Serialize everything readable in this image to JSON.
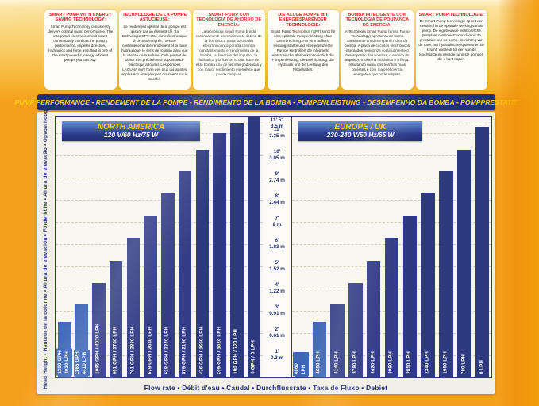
{
  "top_panels": [
    {
      "heading": "SMART PUMP WITH ENERGY SAVING TECHNOLOGY:",
      "body": "Smart Pump Technology consistently delivers optimal pump performance. The integrated electronic circuit board continuously monitors the pump's performance, impeller direction, hydraulics and force, resulting in one of the most powerful, energy efficient pumps you can buy."
    },
    {
      "heading": "TECHNOLOGIE DE LA POMPE ASTUCIEUSE:",
      "body": "Le rendement optimal de la pompe est assuré par un élément clé : la technologie SPT. Une carte électronique à circuits intégrés, mesure continuellement le rendement et la force hydraulique, le sens de rotation ainsi que la vitesse de la turbine. Cela permet de doser très précisément la puissance électrique à fournir. Les pompes LAGUNA sont l'une des plus puissantes et plus éco énergétiques qui soient sur le marché."
    },
    {
      "heading": "SMART PUMP CON TECNOLOGÍA DE AHORRO DE ENERGÍA:",
      "body": "La tecnología Smart Pump brinda continuamente un rendimiento óptimo de la bomba. La placa de circuito electrónico incorporada controla constantemente el rendimiento de la bomba, la dirección del impulsor, la hidráulica y la fuerza, lo cual hace de esta bomba una de las más poderosas y con mayor rendimiento energético que puede comprar."
    },
    {
      "heading": "DIE KLUGE PUMPE MIT ENERGIESPARENDER TECHNOLOGIE:",
      "body": "Smart Pump Technology (SPT) sorgt für eine optimale Pumpenleistung ohne Unterbrechung. Für eine äußerst leistungsstarke und energieeffiziente Pumpe kontrolliert die integrierte elektronische Platine kontinuierlich die Pumpenleistung, die Drehrichtung, die Hydraulik und die Leistung des Flügelrades."
    },
    {
      "heading": "BOMBA INTELIGENTE COM TECNOLOGIA DE POUPANÇA DE ENERGIA:",
      "body": "A Tecnologia Smart Pump (Smart Pump Technology) apresenta de forma consistente um desempenho ideal da bomba. A placa de circuitos electrónicos integrados monitoriza continuamente o desempenho das bombas, o sentido do impulsor, o sistema hidráulico e a força, resultando numa das bombas mais potentes e com maior eficiência energética que pode adquirir."
    },
    {
      "heading": "SMART PUMP-TECHNOLOGIE:",
      "body": "De Smart Pump-technologie speelt een sleutelrol in de optimale werking van de pomp. De ingebouwde elektronische printplaat controleert voortdurend de prestaties van de pomp, de richting van de rotor, het hydraulische systeem en de kracht, wat leidt tot een van de krachtigste en energiezuinigste pompen die u kunt kopen."
    }
  ],
  "banner": {
    "text": "PUMP PERFORMANCE • RENDEMENT DE LA POMPE • RENDIMIENTO DE LA BOMBA • PUMPENLEISTUNG • DESEMPENHO DA BOMBA • POMPPRESTATIE"
  },
  "axis": {
    "head_label": "Head Height • Hauteur de la colonne • Altura de elevación • Förderhöhe • Altura de elevação • Opvoerhoogte",
    "flow_label": "Flow rate • Débit d'eau • Caudal • Durchflussrate • Taxa de Fluxo • Debiet"
  },
  "colors": {
    "box_orange": "#f5a01d",
    "banner_navy": "#232f7d",
    "banner_yellow": "#ffd400",
    "heading_red": "#d02027",
    "bar_light_blue": "#3c66b4",
    "bar_navy": "#333e86",
    "bar_dark_navy": "#2e3a80",
    "axis_text": "#1c2a6e"
  },
  "chart_data": {
    "type": "bar",
    "unit_y": "head height (ft / m)",
    "unit_x": "flow rate (GPH / LPH)",
    "ylim_ft": [
      0,
      11.75
    ],
    "y_ticks": [
      {
        "ft": "11' 5\"",
        "m": "3.5 m",
        "value_ft": 11.42
      },
      {
        "ft": "11'",
        "m": "3.35 m",
        "value_ft": 11
      },
      {
        "ft": "10'",
        "m": "3.05 m",
        "value_ft": 10
      },
      {
        "ft": "9'",
        "m": "2.74 m",
        "value_ft": 9
      },
      {
        "ft": "8'",
        "m": "2.44 m",
        "value_ft": 8
      },
      {
        "ft": "7'",
        "m": "2 m",
        "value_ft": 7
      },
      {
        "ft": "6'",
        "m": "1.83 m",
        "value_ft": 6
      },
      {
        "ft": "5'",
        "m": "1.52 m",
        "value_ft": 5
      },
      {
        "ft": "4'",
        "m": "1.22 m",
        "value_ft": 4
      },
      {
        "ft": "3'",
        "m": "0.91 m",
        "value_ft": 3
      },
      {
        "ft": "2'",
        "m": "0.61 m",
        "value_ft": 2
      },
      {
        "ft": "1'",
        "m": "0.3 m",
        "value_ft": 1
      }
    ],
    "charts": [
      {
        "title": "NORTH AMERICA",
        "power": "120 V/60 Hz/75 W",
        "bars": [
          {
            "label_lines": [
              "1300 GPH",
              "4920 LPH"
            ],
            "head_ft": 2.5,
            "color": "#3c66b4"
          },
          {
            "label_lines": [
              "1165 GPH",
              "4410 LPH"
            ],
            "head_ft": 3.3,
            "color": "#3c66b4"
          },
          {
            "label_lines": [
              "1065 GPH / 4030 LPH"
            ],
            "head_ft": 4.25,
            "color": "#333e86"
          },
          {
            "label_lines": [
              "991 GPH / 3750 LPH"
            ],
            "head_ft": 5.25,
            "color": "#333e86"
          },
          {
            "label_lines": [
              "761 GPH / 2880 LPH"
            ],
            "head_ft": 6.3,
            "color": "#333e86"
          },
          {
            "label_lines": [
              "679 GPH / 2640 LPH"
            ],
            "head_ft": 7.3,
            "color": "#333e86"
          },
          {
            "label_lines": [
              "618 GPH / 2340 LPH"
            ],
            "head_ft": 8.3,
            "color": "#333e86"
          },
          {
            "label_lines": [
              "579 GPH / 2190 LPH"
            ],
            "head_ft": 9.3,
            "color": "#333e86"
          },
          {
            "label_lines": [
              "436 GPH / 1650 LPH"
            ],
            "head_ft": 10.25,
            "color": "#2e3a80"
          },
          {
            "label_lines": [
              "269 GPH / 1020 LPH"
            ],
            "head_ft": 11.0,
            "color": "#2e3a80"
          },
          {
            "label_lines": [
              "190 GPH / 720 LPH"
            ],
            "head_ft": 11.45,
            "color": "#2e3a80"
          },
          {
            "label_lines": [
              "0 GPH / 0 LPH"
            ],
            "head_ft": 11.7,
            "color": "#2e3a80"
          }
        ]
      },
      {
        "title": "EUROPE / UK",
        "power": "230-240 V/50 Hz/65 W",
        "bars": [
          {
            "label_lines": [
              "4860 LPH"
            ],
            "head_ft": 1.15,
            "color": "#3c66b4"
          },
          {
            "label_lines": [
              "4680 LPH"
            ],
            "head_ft": 2.5,
            "color": "#3c66b4"
          },
          {
            "label_lines": [
              "4140 LPH"
            ],
            "head_ft": 3.3,
            "color": "#333e86"
          },
          {
            "label_lines": [
              "3780 LPH"
            ],
            "head_ft": 4.25,
            "color": "#333e86"
          },
          {
            "label_lines": [
              "3420 LPH"
            ],
            "head_ft": 5.25,
            "color": "#333e86"
          },
          {
            "label_lines": [
              "3090 LPH"
            ],
            "head_ft": 6.3,
            "color": "#333e86"
          },
          {
            "label_lines": [
              "2850 LPH"
            ],
            "head_ft": 7.3,
            "color": "#2e3a80"
          },
          {
            "label_lines": [
              "2340 LPH"
            ],
            "head_ft": 8.3,
            "color": "#2e3a80"
          },
          {
            "label_lines": [
              "1950 LPH"
            ],
            "head_ft": 9.3,
            "color": "#2e3a80"
          },
          {
            "label_lines": [
              "780 LPH"
            ],
            "head_ft": 10.25,
            "color": "#2e3a80"
          },
          {
            "label_lines": [
              "0 LPH"
            ],
            "head_ft": 11.3,
            "color": "#2e3a80"
          }
        ]
      }
    ]
  }
}
